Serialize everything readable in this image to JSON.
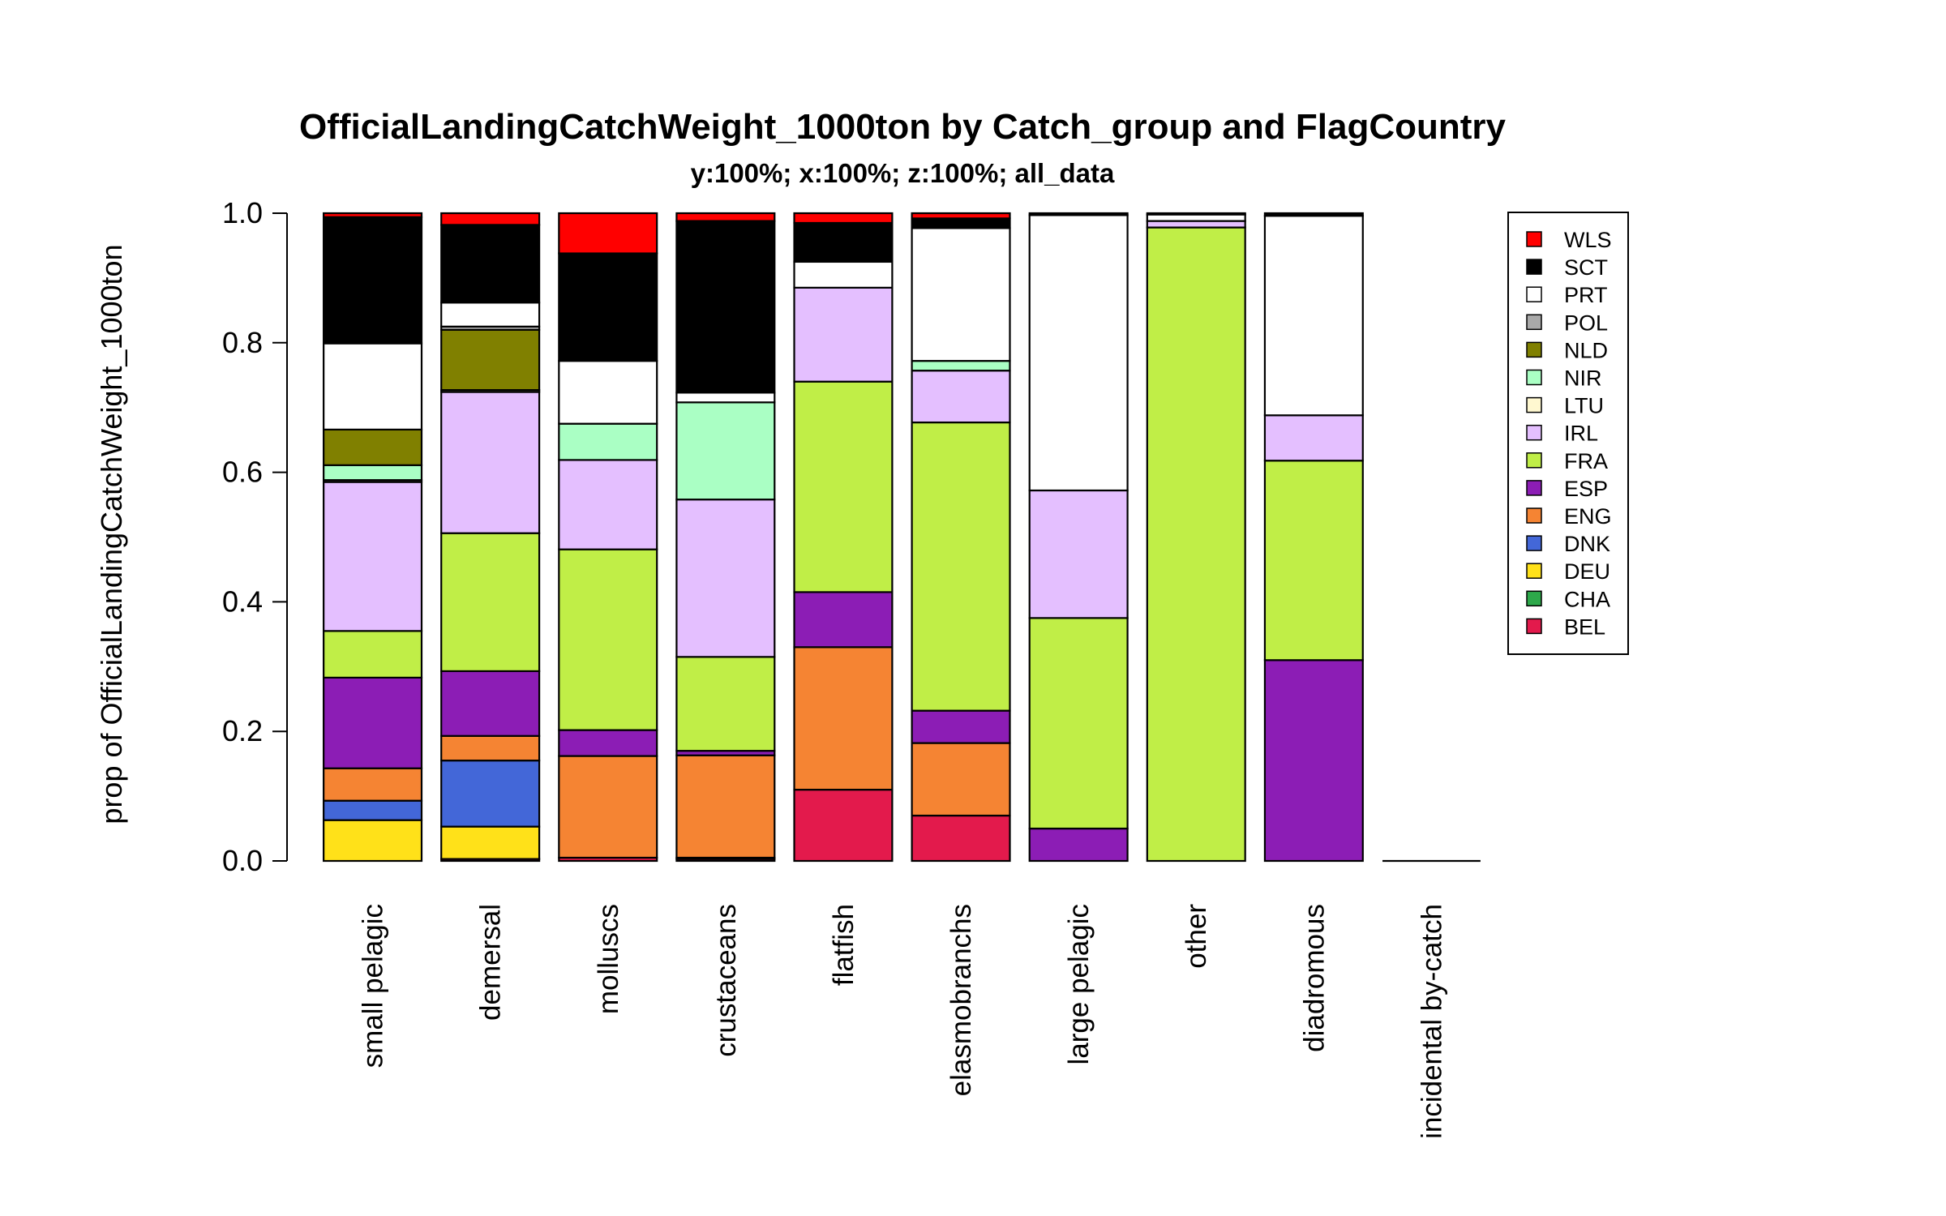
{
  "chart_data": {
    "type": "bar",
    "stacked": true,
    "title": "OfficialLandingCatchWeight_1000ton by Catch_group and FlagCountry",
    "subtitle": "y:100%; x:100%; z:100%; all_data",
    "ylabel": "prop of OfficialLandingCatchWeight_1000ton",
    "xlabel": "",
    "ylim": [
      0,
      1
    ],
    "y_ticks": [
      "0.0",
      "0.2",
      "0.4",
      "0.6",
      "0.8",
      "1.0"
    ],
    "legend_position": "right",
    "categories": [
      "small pelagic",
      "demersal",
      "molluscs",
      "crustaceans",
      "flatfish",
      "elasmobranchs",
      "large pelagic",
      "other",
      "diadromous",
      "incidental by-catch"
    ],
    "series": [
      {
        "name": "BEL",
        "color": "#E31A4C",
        "values": [
          0.0,
          0.003,
          0.005,
          0.003,
          0.11,
          0.07,
          0.0,
          0.0,
          0.0,
          0.0
        ]
      },
      {
        "name": "CHA",
        "color": "#2DA84A",
        "values": [
          0.0,
          0.0,
          0.0,
          0.0,
          0.0,
          0.0,
          0.0,
          0.0,
          0.0,
          0.0
        ]
      },
      {
        "name": "DEU",
        "color": "#FFE119",
        "values": [
          0.063,
          0.05,
          0.0,
          0.002,
          0.0,
          0.0,
          0.0,
          0.0,
          0.0,
          0.0
        ]
      },
      {
        "name": "DNK",
        "color": "#4367D8",
        "values": [
          0.03,
          0.102,
          0.0,
          0.0,
          0.0,
          0.0,
          0.0,
          0.0,
          0.0,
          0.0
        ]
      },
      {
        "name": "ENG",
        "color": "#F58433",
        "values": [
          0.05,
          0.038,
          0.157,
          0.158,
          0.22,
          0.112,
          0.0,
          0.0,
          0.0,
          0.0
        ]
      },
      {
        "name": "ESP",
        "color": "#8C1DB5",
        "values": [
          0.14,
          0.1,
          0.04,
          0.007,
          0.085,
          0.05,
          0.05,
          0.0,
          0.31,
          0.0
        ]
      },
      {
        "name": "FRA",
        "color": "#C0EE47",
        "values": [
          0.072,
          0.213,
          0.279,
          0.145,
          0.325,
          0.445,
          0.325,
          0.978,
          0.308,
          0.0
        ]
      },
      {
        "name": "IRL",
        "color": "#E4BFFF",
        "values": [
          0.23,
          0.218,
          0.138,
          0.243,
          0.145,
          0.08,
          0.197,
          0.01,
          0.07,
          0.0
        ]
      },
      {
        "name": "LTU",
        "color": "#FFF8D0",
        "values": [
          0.003,
          0.003,
          0.0,
          0.0,
          0.0,
          0.0,
          0.0,
          0.0,
          0.0,
          0.0
        ]
      },
      {
        "name": "NIR",
        "color": "#AAFFC4",
        "values": [
          0.023,
          0.0,
          0.056,
          0.15,
          0.0,
          0.015,
          0.0,
          0.0,
          0.0,
          0.0
        ]
      },
      {
        "name": "NLD",
        "color": "#808000",
        "values": [
          0.055,
          0.093,
          0.0,
          0.0,
          0.0,
          0.0,
          0.0,
          0.0,
          0.0,
          0.0
        ]
      },
      {
        "name": "POL",
        "color": "#A9A9A9",
        "values": [
          0.0,
          0.005,
          0.0,
          0.0,
          0.0,
          0.0,
          0.0,
          0.0,
          0.0,
          0.0
        ]
      },
      {
        "name": "PRT",
        "color": "#FFFFFF",
        "values": [
          0.133,
          0.037,
          0.097,
          0.015,
          0.04,
          0.205,
          0.425,
          0.01,
          0.308,
          0.0
        ]
      },
      {
        "name": "SCT",
        "color": "#000000",
        "values": [
          0.195,
          0.12,
          0.166,
          0.265,
          0.06,
          0.015,
          0.003,
          0.002,
          0.004,
          0.0
        ]
      },
      {
        "name": "WLS",
        "color": "#FF0000",
        "values": [
          0.006,
          0.018,
          0.062,
          0.012,
          0.015,
          0.008,
          0.0,
          0.0,
          0.0,
          0.0
        ]
      }
    ]
  }
}
